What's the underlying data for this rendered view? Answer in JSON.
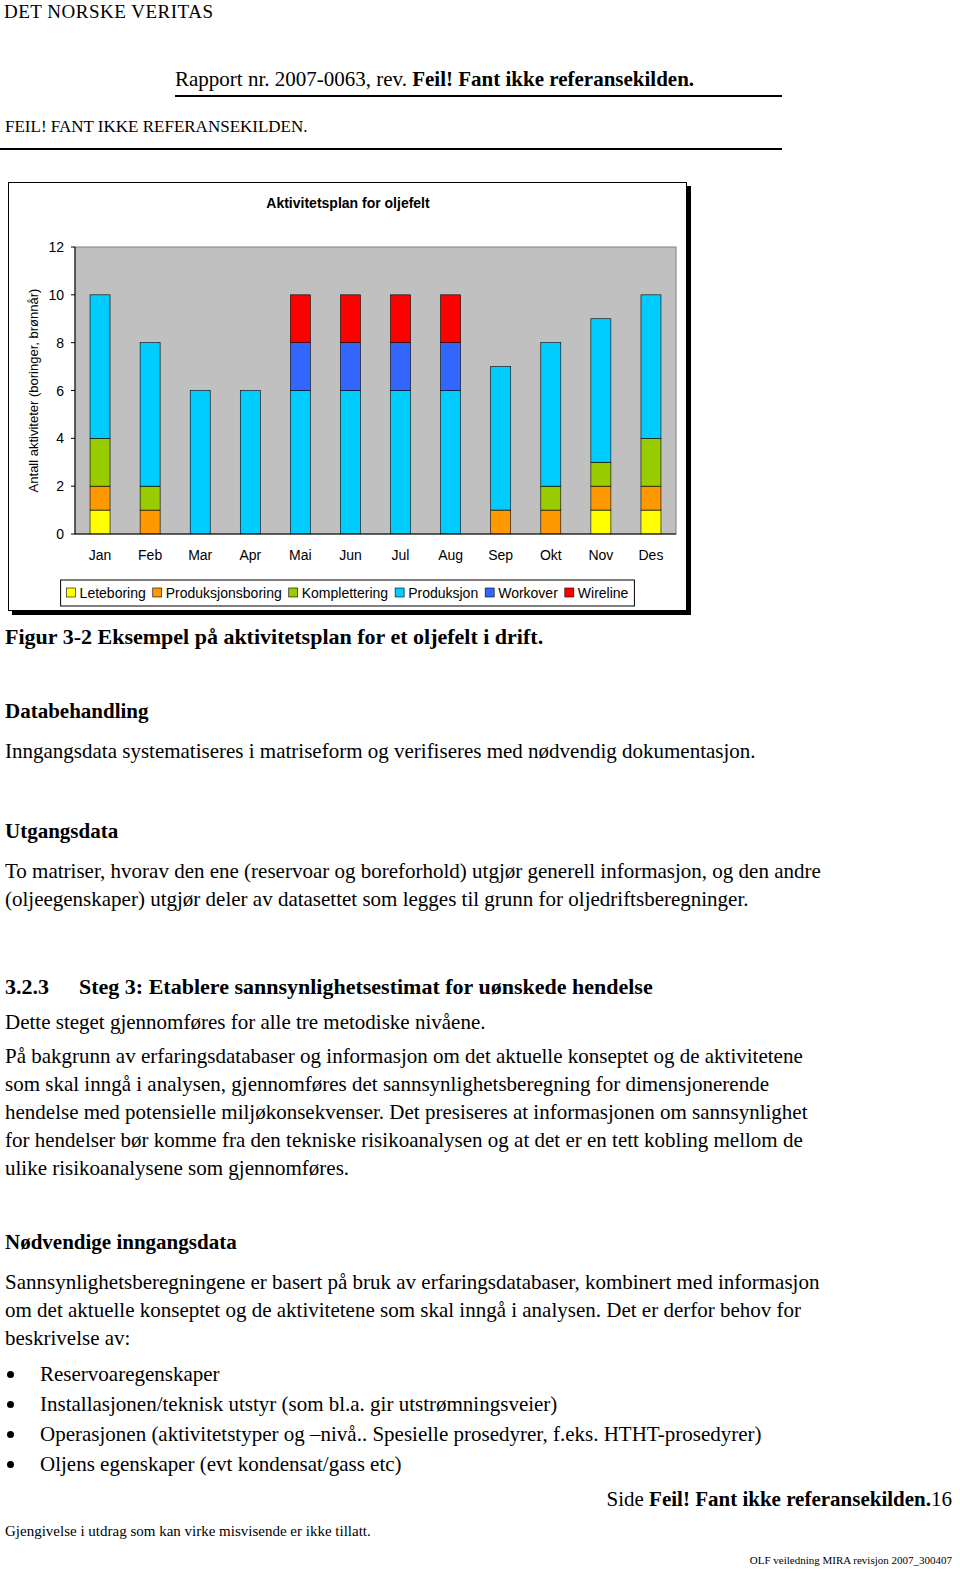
{
  "header": {
    "org": "DET NORSKE VERITAS",
    "report": "Rapport nr. 2007-0063, rev. ",
    "report_ref": "Feil! Fant ikke referansekilden.",
    "title": "FEIL! FANT IKKE REFERANSEKILDEN."
  },
  "chart_data": {
    "type": "bar",
    "stacked": true,
    "title": "Aktivitetsplan for oljefelt",
    "y_label": "Antall aktiviteter (boringer, brønnår)",
    "categories": [
      "Jan",
      "Feb",
      "Mar",
      "Apr",
      "Mai",
      "Jun",
      "Jul",
      "Aug",
      "Sep",
      "Okt",
      "Nov",
      "Des"
    ],
    "series": [
      {
        "name": "Leteboring",
        "color": "#ffff00",
        "values": [
          1,
          0,
          0,
          0,
          0,
          0,
          0,
          0,
          0,
          0,
          1,
          1
        ]
      },
      {
        "name": "Produksjonsboring",
        "color": "#ff9900",
        "values": [
          1,
          1,
          0,
          0,
          0,
          0,
          0,
          0,
          1,
          1,
          1,
          1
        ]
      },
      {
        "name": "Komplettering",
        "color": "#99cc00",
        "values": [
          2,
          1,
          0,
          0,
          0,
          0,
          0,
          0,
          0,
          1,
          1,
          2
        ]
      },
      {
        "name": "Produksjon",
        "color": "#00ccff",
        "values": [
          6,
          6,
          6,
          6,
          6,
          6,
          6,
          6,
          6,
          6,
          6,
          6
        ]
      },
      {
        "name": "Workover",
        "color": "#3366ff",
        "values": [
          0,
          0,
          0,
          0,
          2,
          2,
          2,
          2,
          0,
          0,
          0,
          0
        ]
      },
      {
        "name": "Wireline",
        "color": "#ff0000",
        "values": [
          0,
          0,
          0,
          0,
          2,
          2,
          2,
          2,
          0,
          0,
          0,
          0
        ]
      }
    ],
    "ylim": [
      0,
      12
    ],
    "yticks": [
      0,
      2,
      4,
      6,
      8,
      10,
      12
    ],
    "grid": false,
    "legend": "bottom"
  },
  "document": {
    "caption": "Figur 3-2 Eksempel på aktivitetsplan for et oljefelt i drift.",
    "databehandling": {
      "heading": "Databehandling",
      "lines": [
        "Inngangsdata systematiseres i matriseform og verifiseres med nødvendig dokumentasjon."
      ]
    },
    "utgangsdata": {
      "heading": "Utgangsdata",
      "lines": [
        "To matriser, hvorav den ene (reservoar og boreforhold) utgjør generell informasjon, og den andre",
        "(oljeegenskaper) utgjør deler av datasettet som legges til grunn for oljedriftsberegninger."
      ]
    },
    "section": {
      "number": "3.2.3",
      "title": "Steg 3: Etablere sannsynlighetsestimat for uønskede hendelse",
      "intro": "Dette steget gjennomføres for alle tre metodiske nivåene.",
      "lines": [
        "På bakgrunn av erfaringsdatabaser og informasjon om det aktuelle konseptet og de aktivitetene",
        "som skal inngå i analysen, gjennomføres det sannsynlighetsberegning for dimensjonerende",
        "hendelse med potensielle miljøkonsekvenser. Det presiseres at informasjonen om sannsynlighet",
        "for hendelser bør komme fra den tekniske risikoanalysen og at det er en tett kobling mellom de",
        "ulike risikoanalysene som gjennomføres."
      ]
    },
    "inngangsdata": {
      "heading": "Nødvendige inngangsdata",
      "lines": [
        "Sannsynlighetsberegningene er basert på bruk av erfaringsdatabaser, kombinert med informasjon",
        "om det aktuelle konseptet og de aktivitetene som skal inngå i analysen. Det er derfor behov for",
        "beskrivelse av:"
      ],
      "bullets": [
        "Reservoaregenskaper",
        "Installasjonen/teknisk utstyr (som bl.a. gir utstrømningsveier)",
        "Operasjonen (aktivitetstyper og –nivå.. Spesielle prosedyrer, f.eks. HTHT-prosedyrer)",
        "Oljens egenskaper (evt kondensat/gass etc)"
      ]
    }
  },
  "footer": {
    "page_prefix": "Side ",
    "page_ref": "Feil! Fant ikke referansekilden.",
    "page_number": 16,
    "notice": "Gjengivelse i utdrag som kan virke misvisende er ikke tillatt.",
    "revision": "OLF veiledning MIRA revisjon 2007_300407"
  }
}
